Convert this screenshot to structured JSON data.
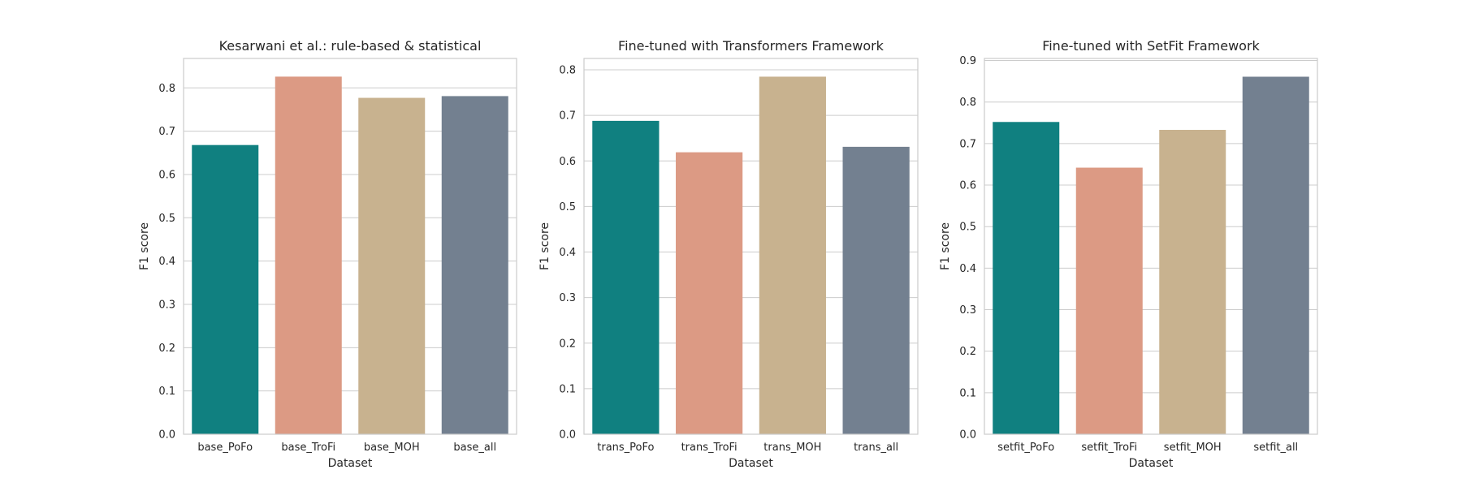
{
  "chart_data": [
    {
      "type": "bar",
      "title": "Kesarwani et al.: rule-based & statistical",
      "xlabel": "Dataset",
      "ylabel": "F1 score",
      "categories": [
        "base_PoFo",
        "base_TroFi",
        "base_MOH",
        "base_all"
      ],
      "values": [
        0.668,
        0.826,
        0.777,
        0.781
      ],
      "ylim": [
        0,
        0.868
      ],
      "yticks": [
        0.0,
        0.1,
        0.2,
        0.3,
        0.4,
        0.5,
        0.6,
        0.7,
        0.8
      ],
      "ytick_labels": [
        "0.0",
        "0.1",
        "0.2",
        "0.3",
        "0.4",
        "0.5",
        "0.6",
        "0.7",
        "0.8"
      ],
      "colors": [
        "#108080",
        "#dc9a84",
        "#c8b28f",
        "#738090"
      ],
      "grid": true,
      "grid_axis": "y"
    },
    {
      "type": "bar",
      "title": "Fine-tuned with Transformers Framework",
      "xlabel": "Dataset",
      "ylabel": "F1 score",
      "categories": [
        "trans_PoFo",
        "trans_TroFi",
        "trans_MOH",
        "trans_all"
      ],
      "values": [
        0.688,
        0.619,
        0.785,
        0.631
      ],
      "ylim": [
        0,
        0.825
      ],
      "yticks": [
        0.0,
        0.1,
        0.2,
        0.3,
        0.4,
        0.5,
        0.6,
        0.7,
        0.8
      ],
      "ytick_labels": [
        "0.0",
        "0.1",
        "0.2",
        "0.3",
        "0.4",
        "0.5",
        "0.6",
        "0.7",
        "0.8"
      ],
      "colors": [
        "#108080",
        "#dc9a84",
        "#c8b28f",
        "#738090"
      ],
      "grid": true,
      "grid_axis": "y"
    },
    {
      "type": "bar",
      "title": "Fine-tuned with SetFit Framework",
      "xlabel": "Dataset",
      "ylabel": "F1 score",
      "categories": [
        "setfit_PoFo",
        "setfit_TroFi",
        "setfit_MOH",
        "setfit_all"
      ],
      "values": [
        0.752,
        0.642,
        0.733,
        0.861
      ],
      "ylim": [
        0,
        0.905
      ],
      "yticks": [
        0.0,
        0.1,
        0.2,
        0.3,
        0.4,
        0.5,
        0.6,
        0.7,
        0.8,
        0.9
      ],
      "ytick_labels": [
        "0.0",
        "0.1",
        "0.2",
        "0.3",
        "0.4",
        "0.5",
        "0.6",
        "0.7",
        "0.8",
        "0.9"
      ],
      "colors": [
        "#108080",
        "#dc9a84",
        "#c8b28f",
        "#738090"
      ],
      "grid": true,
      "grid_axis": "y"
    }
  ]
}
